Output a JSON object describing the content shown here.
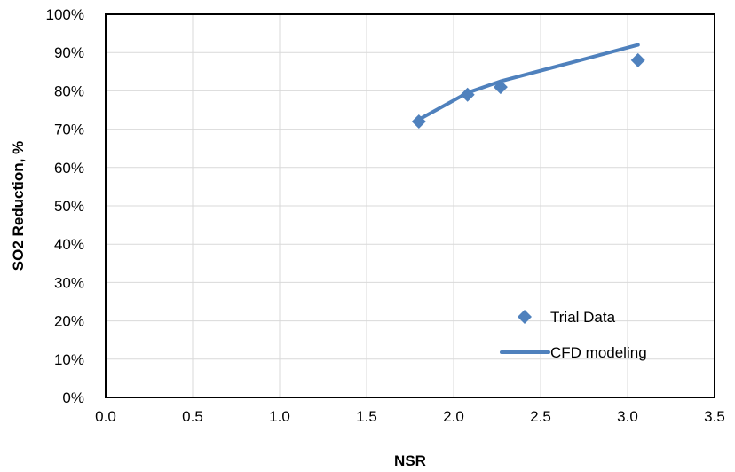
{
  "chart_data": {
    "type": "scatter",
    "title": "",
    "xlabel": "NSR",
    "ylabel": "SO2 Reduction, %",
    "xlim": [
      0,
      3.5
    ],
    "ylim": [
      0,
      100
    ],
    "x_ticks": [
      0,
      0.5,
      1,
      1.5,
      2,
      2.5,
      3,
      3.5
    ],
    "y_ticks": [
      0,
      10,
      20,
      30,
      40,
      50,
      60,
      70,
      80,
      90,
      100
    ],
    "x_tick_labels": [
      "0.0",
      "0.5",
      "1.0",
      "1.5",
      "2.0",
      "2.5",
      "3.0",
      "3.5"
    ],
    "y_tick_labels": [
      "0%",
      "10%",
      "20%",
      "30%",
      "40%",
      "50%",
      "60%",
      "70%",
      "80%",
      "90%",
      "100%"
    ],
    "grid": true,
    "legend_position": "bottom-right",
    "series": [
      {
        "name": "Trial Data",
        "kind": "markers",
        "marker": "diamond",
        "color": "#4f81bd",
        "x": [
          1.8,
          2.08,
          2.27,
          3.06
        ],
        "y": [
          72,
          79,
          81,
          88
        ]
      },
      {
        "name": "CFD modeling",
        "kind": "line",
        "color": "#4f81bd",
        "x": [
          1.8,
          2.08,
          2.27,
          3.06
        ],
        "y": [
          72.5,
          79.5,
          82.5,
          92
        ]
      }
    ]
  }
}
